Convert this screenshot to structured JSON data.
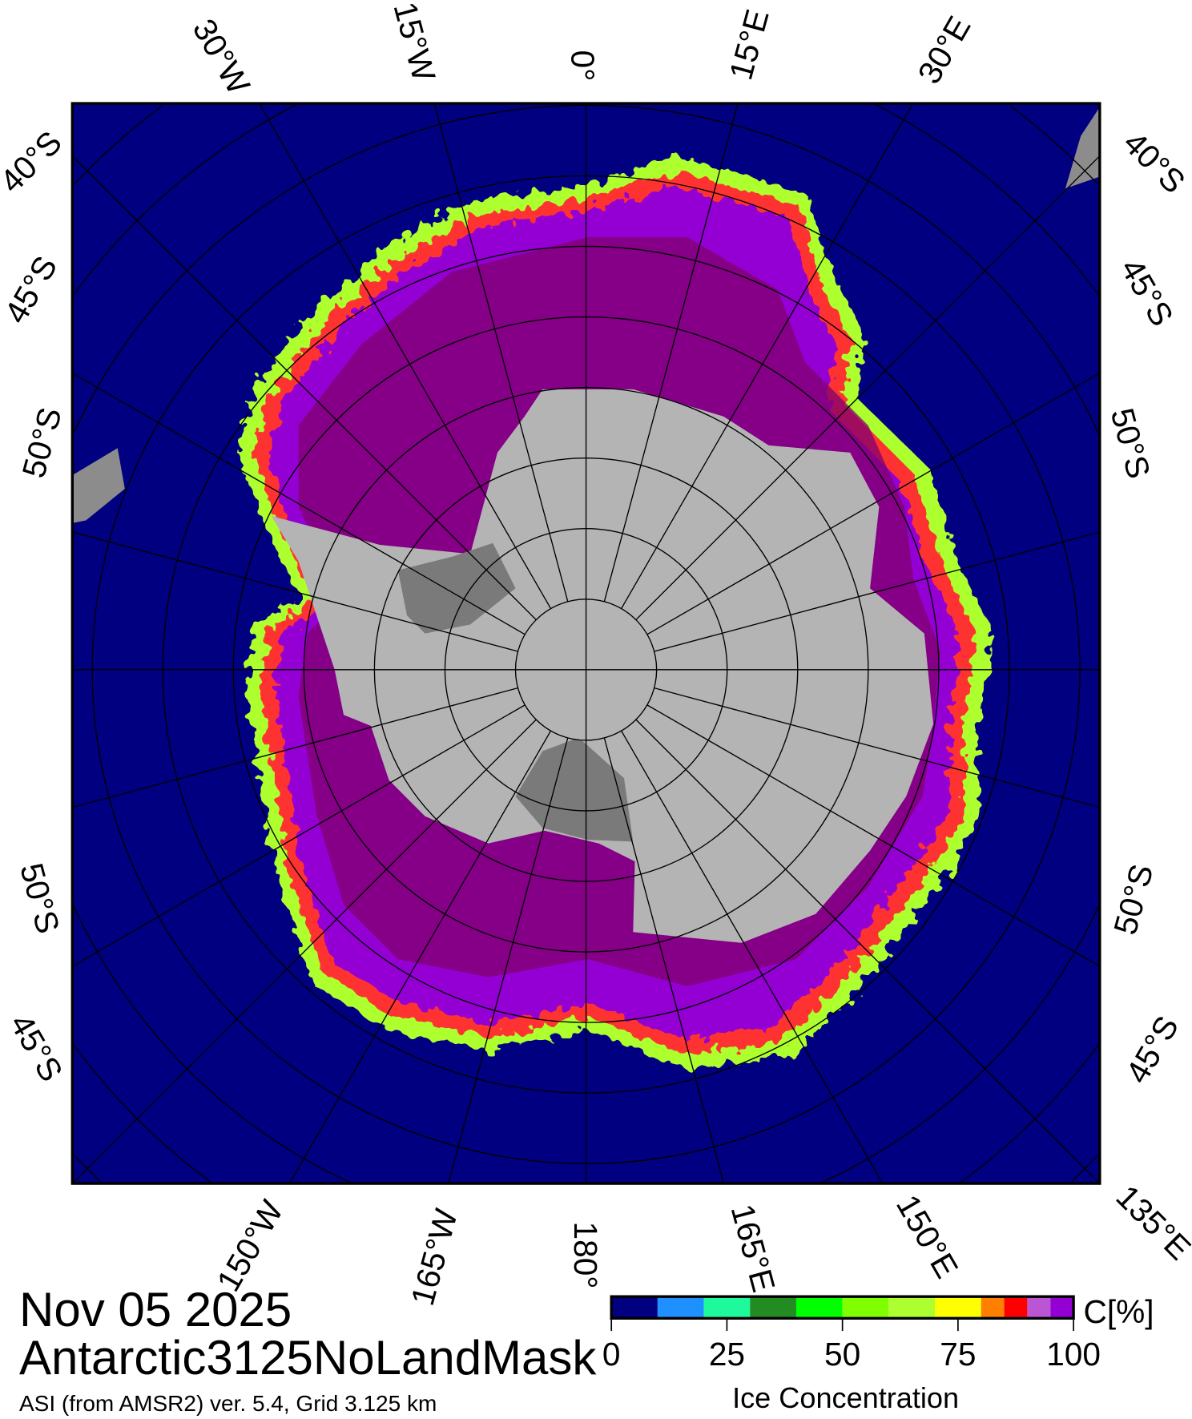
{
  "map": {
    "projection": "south polar stereographic",
    "meridian_labels_top": [
      "30°W",
      "15°W",
      "0°",
      "15°E",
      "30°E"
    ],
    "meridian_labels_bottom": [
      "150°W",
      "165°W",
      "180°",
      "165°E",
      "150°E",
      "135°E"
    ],
    "latitude_labels_left": [
      "40°S",
      "45°S",
      "50°S",
      "50°S",
      "45°S"
    ],
    "latitude_labels_right": [
      "40°S",
      "45°S",
      "50°S",
      "50°S",
      "45°S"
    ],
    "colors": {
      "ocean": "#000080",
      "land": "#b4b4b4",
      "shelf": "#7a7a7a",
      "ice_full": "#80006e",
      "ice_high": "#9400d3"
    }
  },
  "title": {
    "date": "Nov 05 2025",
    "product": "Antarctic3125NoLandMask",
    "subtitle": "ASI (from AMSR2) ver. 5.4,  Grid 3.125 km"
  },
  "colorbar": {
    "label": "Ice Concentration",
    "unit": "C[%]",
    "ticks": [
      "0",
      "25",
      "50",
      "75",
      "100"
    ],
    "range": [
      0,
      100
    ],
    "colors": [
      "#000080",
      "#1e90ff",
      "#1efa9b",
      "#228b22",
      "#00ff00",
      "#7fff00",
      "#adff2f",
      "#ffff00",
      "#ff7f00",
      "#ff0000",
      "#ba55d3",
      "#9400d3"
    ],
    "bounds": [
      0,
      10,
      20,
      30,
      40,
      50,
      60,
      70,
      80,
      85,
      90,
      95,
      100
    ]
  }
}
